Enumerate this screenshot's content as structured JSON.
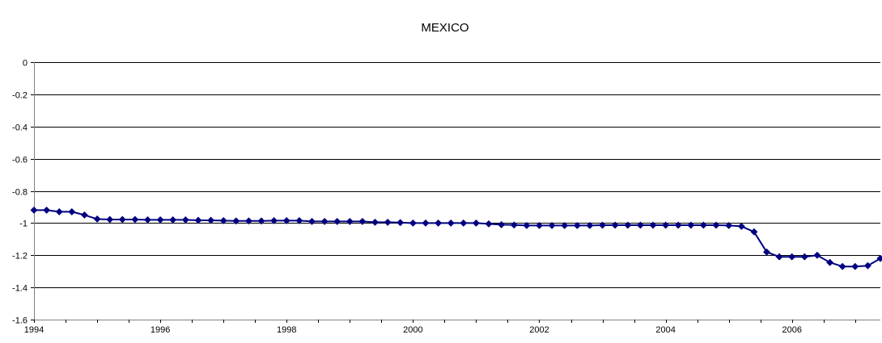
{
  "chart_data": {
    "type": "line",
    "title": "MEXICO",
    "xlabel": "",
    "ylabel": "",
    "xlim": [
      1994,
      2007.4
    ],
    "ylim": [
      -1.6,
      0
    ],
    "y_ticks": [
      0,
      -0.2,
      -0.4,
      -0.6,
      -0.8,
      -1,
      -1.2,
      -1.4,
      -1.6
    ],
    "y_tick_labels": [
      "0",
      "-0.2",
      "-0.4",
      "-0.6",
      "-0.8",
      "-1",
      "-1.2",
      "-1.4",
      "-1.6"
    ],
    "x_ticks": [
      1994,
      1996,
      1998,
      2000,
      2002,
      2004,
      2006
    ],
    "x_tick_labels": [
      "1994",
      "1996",
      "1998",
      "2000",
      "2002",
      "2004",
      "2006"
    ],
    "grid": "horizontal",
    "legend": "none",
    "colors": {
      "series": "#000080",
      "grid": "#000000",
      "axis": "#808080"
    },
    "series": [
      {
        "marker": "diamond",
        "x": [
          1994.0,
          1994.2,
          1994.4,
          1994.6,
          1994.8,
          1995.0,
          1995.2,
          1995.4,
          1995.6,
          1995.8,
          1996.0,
          1996.2,
          1996.4,
          1996.6,
          1996.8,
          1997.0,
          1997.2,
          1997.4,
          1997.6,
          1997.8,
          1998.0,
          1998.2,
          1998.4,
          1998.6,
          1998.8,
          1999.0,
          1999.2,
          1999.4,
          1999.6,
          1999.8,
          2000.0,
          2000.2,
          2000.4,
          2000.6,
          2000.8,
          2001.0,
          2001.2,
          2001.4,
          2001.6,
          2001.8,
          2002.0,
          2002.2,
          2002.4,
          2002.6,
          2002.8,
          2003.0,
          2003.2,
          2003.4,
          2003.6,
          2003.8,
          2004.0,
          2004.2,
          2004.4,
          2004.6,
          2004.8,
          2005.0,
          2005.2,
          2005.4,
          2005.6,
          2005.8,
          2006.0,
          2006.2,
          2006.4,
          2006.6,
          2006.8,
          2007.0,
          2007.2,
          2007.4
        ],
        "values": [
          -0.92,
          -0.92,
          -0.93,
          -0.93,
          -0.95,
          -0.975,
          -0.978,
          -0.978,
          -0.978,
          -0.98,
          -0.98,
          -0.98,
          -0.98,
          -0.983,
          -0.983,
          -0.985,
          -0.987,
          -0.987,
          -0.987,
          -0.985,
          -0.985,
          -0.985,
          -0.99,
          -0.99,
          -0.99,
          -0.99,
          -0.99,
          -0.995,
          -0.995,
          -0.997,
          -1.0,
          -1.0,
          -1.0,
          -1.0,
          -1.0,
          -1.0,
          -1.005,
          -1.01,
          -1.012,
          -1.015,
          -1.015,
          -1.015,
          -1.015,
          -1.015,
          -1.015,
          -1.013,
          -1.013,
          -1.013,
          -1.013,
          -1.013,
          -1.013,
          -1.013,
          -1.013,
          -1.013,
          -1.013,
          -1.015,
          -1.02,
          -1.055,
          -1.18,
          -1.21,
          -1.21,
          -1.21,
          -1.2,
          -1.245,
          -1.27,
          -1.27,
          -1.265,
          -1.22
        ]
      }
    ]
  }
}
